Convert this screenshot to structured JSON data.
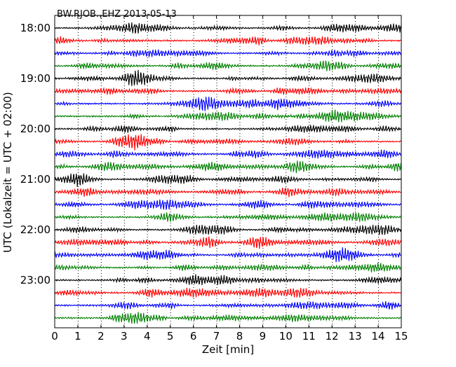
{
  "chart_data": {
    "type": "line",
    "title": "BW.RJOB..EHZ 2013-05-13",
    "xlabel": "Zeit  [min]",
    "ylabel": "UTC (Lokalzeit = UTC + 02:00)",
    "xlim": [
      0,
      15
    ],
    "x_ticks": [
      0,
      1,
      2,
      3,
      4,
      5,
      6,
      7,
      8,
      9,
      10,
      11,
      12,
      13,
      14,
      15
    ],
    "x_tick_labels": [
      "0",
      "1",
      "2",
      "3",
      "4",
      "5",
      "6",
      "7",
      "8",
      "9",
      "10",
      "11",
      "12",
      "13",
      "14",
      "15"
    ],
    "y_tick_labels": [
      "18:00",
      "19:00",
      "20:00",
      "21:00",
      "22:00",
      "23:00"
    ],
    "trace_interval_minutes": 15,
    "grid": "vertical dotted lines at each minute",
    "trace_colors": [
      "#000000",
      "#ff0000",
      "#0000ff",
      "#008000"
    ],
    "series": [
      {
        "start": "18:00"
      },
      {
        "start": "18:15"
      },
      {
        "start": "18:30"
      },
      {
        "start": "18:45"
      },
      {
        "start": "19:00"
      },
      {
        "start": "19:15"
      },
      {
        "start": "19:30"
      },
      {
        "start": "19:45"
      },
      {
        "start": "20:00"
      },
      {
        "start": "20:15"
      },
      {
        "start": "20:30"
      },
      {
        "start": "20:45"
      },
      {
        "start": "21:00"
      },
      {
        "start": "21:15"
      },
      {
        "start": "21:30"
      },
      {
        "start": "21:45"
      },
      {
        "start": "22:00"
      },
      {
        "start": "22:15"
      },
      {
        "start": "22:30"
      },
      {
        "start": "22:45"
      },
      {
        "start": "23:00"
      },
      {
        "start": "23:15"
      },
      {
        "start": "23:30"
      },
      {
        "start": "23:45"
      }
    ]
  }
}
